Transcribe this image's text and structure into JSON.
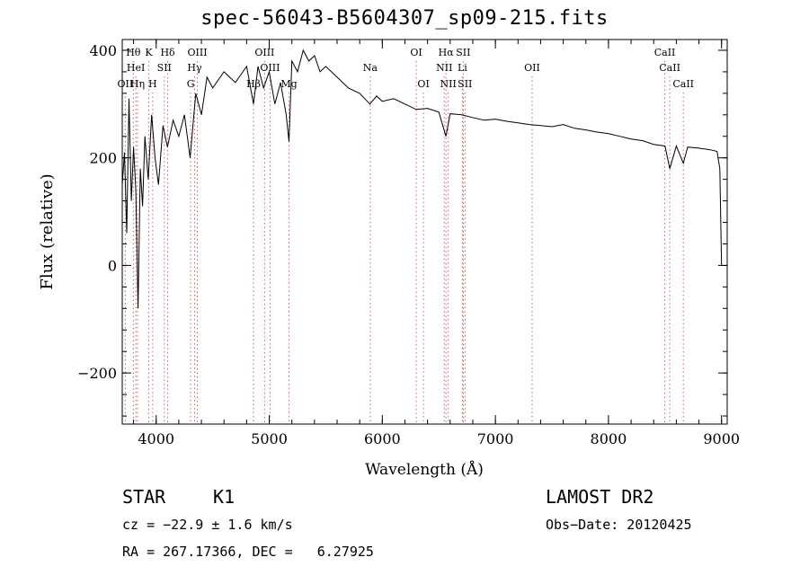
{
  "chart_data": {
    "type": "line",
    "title": "spec-56043-B5604307_sp09-215.fits",
    "xlabel": "Wavelength (Å)",
    "ylabel": "Flux (relative)",
    "xlim": [
      3700,
      9050
    ],
    "ylim": [
      -295,
      420
    ],
    "xticks": [
      4000,
      5000,
      6000,
      7000,
      8000,
      9000
    ],
    "yticks": [
      -200,
      0,
      200,
      400
    ],
    "grid": false,
    "series": [
      {
        "color": "#000000",
        "x": [
          3700,
          3720,
          3740,
          3760,
          3780,
          3800,
          3820,
          3840,
          3860,
          3880,
          3900,
          3930,
          3960,
          3990,
          4020,
          4060,
          4100,
          4150,
          4200,
          4250,
          4300,
          4350,
          4400,
          4450,
          4500,
          4600,
          4700,
          4800,
          4861,
          4900,
          4950,
          5000,
          5050,
          5100,
          5150,
          5175,
          5200,
          5250,
          5300,
          5350,
          5400,
          5450,
          5500,
          5600,
          5700,
          5800,
          5890,
          5950,
          6000,
          6100,
          6200,
          6300,
          6400,
          6500,
          6563,
          6600,
          6700,
          6800,
          6900,
          7000,
          7100,
          7200,
          7300,
          7400,
          7500,
          7600,
          7700,
          7800,
          7900,
          8000,
          8100,
          8200,
          8300,
          8400,
          8500,
          8542,
          8600,
          8662,
          8700,
          8800,
          8900,
          8960,
          8985,
          9000
        ],
        "y": [
          150,
          210,
          60,
          310,
          120,
          220,
          140,
          -80,
          180,
          110,
          240,
          160,
          280,
          200,
          150,
          260,
          220,
          270,
          240,
          280,
          200,
          320,
          280,
          350,
          330,
          360,
          340,
          370,
          300,
          370,
          330,
          360,
          300,
          340,
          280,
          230,
          380,
          360,
          400,
          380,
          390,
          360,
          370,
          350,
          330,
          320,
          300,
          315,
          305,
          310,
          300,
          290,
          292,
          285,
          240,
          282,
          280,
          275,
          270,
          272,
          268,
          265,
          262,
          260,
          258,
          262,
          255,
          252,
          248,
          245,
          240,
          235,
          232,
          225,
          222,
          180,
          222,
          190,
          220,
          218,
          215,
          212,
          180,
          0
        ]
      }
    ],
    "lines": [
      {
        "label": "Hθ",
        "wave": 3798,
        "row": 1
      },
      {
        "label": "OII",
        "wave": 3727,
        "row": 3
      },
      {
        "label": "HeI",
        "wave": 3820,
        "row": 2
      },
      {
        "label": "Hη",
        "wave": 3835,
        "row": 3
      },
      {
        "label": "K",
        "wave": 3934,
        "row": 1
      },
      {
        "label": "SII",
        "wave": 4072,
        "row": 2
      },
      {
        "label": "H",
        "wave": 3969,
        "row": 3
      },
      {
        "label": "Hδ",
        "wave": 4102,
        "row": 1
      },
      {
        "label": "OIII",
        "wave": 4364,
        "row": 1
      },
      {
        "label": "Hγ",
        "wave": 4340,
        "row": 2
      },
      {
        "label": "G",
        "wave": 4305,
        "row": 3
      },
      {
        "label": "OIII",
        "wave": 4959,
        "row": 1
      },
      {
        "label": "OIII",
        "wave": 5007,
        "row": 2
      },
      {
        "label": "Hβ",
        "wave": 4861,
        "row": 3
      },
      {
        "label": "Mg",
        "wave": 5175,
        "row": 3
      },
      {
        "label": "Na",
        "wave": 5893,
        "row": 2
      },
      {
        "label": "OI",
        "wave": 6300,
        "row": 1
      },
      {
        "label": "OI",
        "wave": 6364,
        "row": 3
      },
      {
        "label": "Hα",
        "wave": 6563,
        "row": 1
      },
      {
        "label": "SII",
        "wave": 6716,
        "row": 1
      },
      {
        "label": "NII",
        "wave": 6548,
        "row": 2
      },
      {
        "label": "Li",
        "wave": 6708,
        "row": 2
      },
      {
        "label": "NII",
        "wave": 6583,
        "row": 3
      },
      {
        "label": "SII",
        "wave": 6731,
        "row": 3
      },
      {
        "label": "OII",
        "wave": 7325,
        "row": 2
      },
      {
        "label": "CaII",
        "wave": 8498,
        "row": 1
      },
      {
        "label": "CaII",
        "wave": 8542,
        "row": 2
      },
      {
        "label": "CaII",
        "wave": 8662,
        "row": 3
      }
    ]
  },
  "info": {
    "class": "STAR",
    "subclass": "K1",
    "survey": "LAMOST DR2",
    "cz": "cz = −22.9 ± 1.6 km/s",
    "obsdate": "Obs−Date: 20120425",
    "radec": "RA = 267.17366, DEC =   6.27925"
  }
}
